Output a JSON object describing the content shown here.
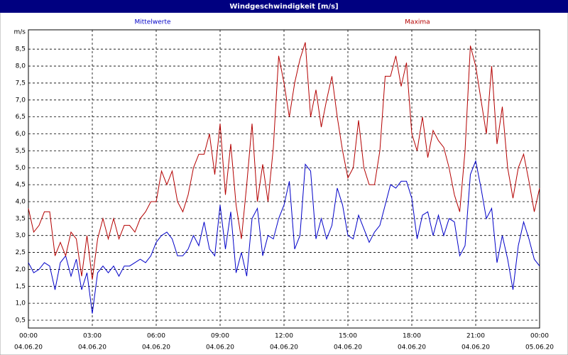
{
  "chart_data": {
    "type": "line",
    "title": "Windgeschwindigkeit [m/s]",
    "y_label": "m/s",
    "x": [
      0,
      0.25,
      0.5,
      0.75,
      1,
      1.25,
      1.5,
      1.75,
      2,
      2.25,
      2.5,
      2.75,
      3,
      3.25,
      3.5,
      3.75,
      4,
      4.25,
      4.5,
      4.75,
      5,
      5.25,
      5.5,
      5.75,
      6,
      6.25,
      6.5,
      6.75,
      7,
      7.25,
      7.5,
      7.75,
      8,
      8.25,
      8.5,
      8.75,
      9,
      9.25,
      9.5,
      9.75,
      10,
      10.25,
      10.5,
      10.75,
      11,
      11.25,
      11.5,
      11.75,
      12,
      12.25,
      12.5,
      12.75,
      13,
      13.25,
      13.5,
      13.75,
      14,
      14.25,
      14.5,
      14.75,
      15,
      15.25,
      15.5,
      15.75,
      16,
      16.25,
      16.5,
      16.75,
      17,
      17.25,
      17.5,
      17.75,
      18,
      18.25,
      18.5,
      18.75,
      19,
      19.25,
      19.5,
      19.75,
      20,
      20.25,
      20.5,
      20.75,
      21,
      21.25,
      21.5,
      21.75,
      22,
      22.25,
      22.5,
      22.75,
      23,
      23.25,
      23.5,
      23.75,
      24
    ],
    "series": [
      {
        "name": "Mittelwerte",
        "color": "#0000c8",
        "values": [
          2.2,
          1.9,
          2.0,
          2.2,
          2.1,
          1.4,
          2.2,
          2.4,
          1.8,
          2.3,
          1.4,
          1.9,
          0.7,
          1.9,
          2.1,
          1.9,
          2.1,
          1.8,
          2.1,
          2.1,
          2.2,
          2.3,
          2.2,
          2.4,
          2.8,
          3.0,
          3.1,
          2.9,
          2.4,
          2.4,
          2.6,
          3.0,
          2.7,
          3.4,
          2.6,
          2.4,
          3.9,
          2.6,
          3.7,
          1.9,
          2.5,
          1.8,
          3.5,
          3.8,
          2.4,
          3.0,
          2.9,
          3.5,
          3.9,
          4.6,
          2.6,
          3.0,
          5.1,
          4.9,
          2.9,
          3.5,
          2.9,
          3.3,
          4.4,
          3.9,
          3.0,
          2.9,
          3.6,
          3.2,
          2.8,
          3.1,
          3.3,
          3.9,
          4.5,
          4.4,
          4.6,
          4.6,
          4.1,
          2.9,
          3.6,
          3.7,
          3.0,
          3.6,
          3.0,
          3.5,
          3.4,
          2.4,
          2.7,
          4.8,
          5.2,
          4.4,
          3.5,
          3.8,
          2.2,
          3.0,
          2.3,
          1.4,
          2.7,
          3.4,
          2.9,
          2.3,
          2.1
        ]
      },
      {
        "name": "Maxima",
        "color": "#b40000",
        "values": [
          3.8,
          3.1,
          3.3,
          3.7,
          3.7,
          2.4,
          2.8,
          2.4,
          3.1,
          2.9,
          1.8,
          3.0,
          1.7,
          2.9,
          3.5,
          2.9,
          3.5,
          2.9,
          3.3,
          3.3,
          3.1,
          3.5,
          3.7,
          4.0,
          4.0,
          4.9,
          4.5,
          4.9,
          4.0,
          3.7,
          4.2,
          5.0,
          5.4,
          5.4,
          6.0,
          4.8,
          6.3,
          4.2,
          5.7,
          3.9,
          2.9,
          4.5,
          6.3,
          4.0,
          5.1,
          4.0,
          5.6,
          8.3,
          7.5,
          6.5,
          7.5,
          8.2,
          8.7,
          6.5,
          7.3,
          6.2,
          7.0,
          7.7,
          6.5,
          5.5,
          4.7,
          5.0,
          6.4,
          5.0,
          4.5,
          4.5,
          5.5,
          7.7,
          7.7,
          8.3,
          7.4,
          8.1,
          6.0,
          5.5,
          6.5,
          5.3,
          6.1,
          5.8,
          5.6,
          5.0,
          4.2,
          3.7,
          5.5,
          8.6,
          8.0,
          7.0,
          6.0,
          8.0,
          5.7,
          6.8,
          5.0,
          4.1,
          5.0,
          5.4,
          4.6,
          3.7,
          4.4
        ]
      }
    ],
    "xlim": [
      0,
      24
    ],
    "xticks": [
      {
        "value": 0,
        "label": "00:00"
      },
      {
        "value": 3,
        "label": "03:00"
      },
      {
        "value": 6,
        "label": "06:00"
      },
      {
        "value": 9,
        "label": "09:00"
      },
      {
        "value": 12,
        "label": "12:00"
      },
      {
        "value": 15,
        "label": "15:00"
      },
      {
        "value": 18,
        "label": "18:00"
      },
      {
        "value": 21,
        "label": "21:00"
      },
      {
        "value": 24,
        "label": "00:00"
      }
    ],
    "xtick_dates": [
      "04.06.20",
      "04.06.20",
      "04.06.20",
      "04.06.20",
      "04.06.20",
      "04.06.20",
      "04.06.20",
      "04.06.20",
      "05.06.20"
    ],
    "ylim": [
      0.27,
      9.07
    ],
    "yticks": [
      {
        "value": 0.5,
        "label": "0,5"
      },
      {
        "value": 1,
        "label": "1,0"
      },
      {
        "value": 1.5,
        "label": "1,5"
      },
      {
        "value": 2,
        "label": "2,0"
      },
      {
        "value": 2.5,
        "label": "2,5"
      },
      {
        "value": 3,
        "label": "3,0"
      },
      {
        "value": 3.5,
        "label": "3,5"
      },
      {
        "value": 4,
        "label": "4,0"
      },
      {
        "value": 4.5,
        "label": "4,5"
      },
      {
        "value": 5,
        "label": "5,0"
      },
      {
        "value": 5.5,
        "label": "5,5"
      },
      {
        "value": 6,
        "label": "6,0"
      },
      {
        "value": 6.5,
        "label": "6,5"
      },
      {
        "value": 7,
        "label": "7,0"
      },
      {
        "value": 7.5,
        "label": "7,5"
      },
      {
        "value": 8,
        "label": "8,0"
      },
      {
        "value": 8.5,
        "label": "8,5"
      }
    ],
    "grid": true
  }
}
